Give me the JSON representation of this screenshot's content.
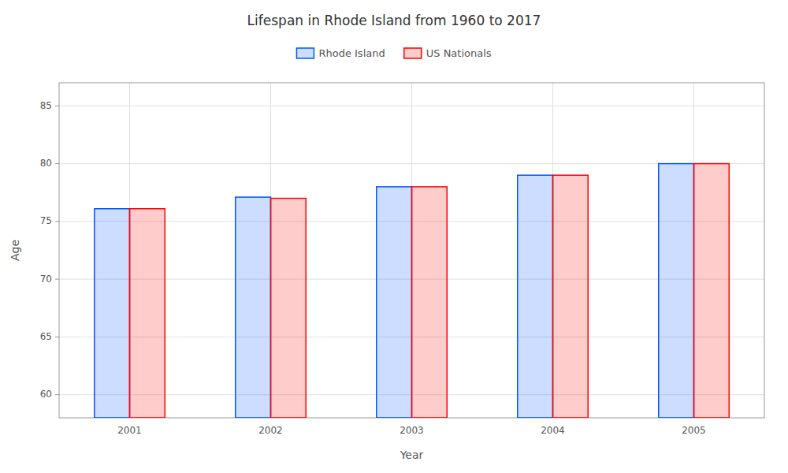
{
  "chart_data": {
    "type": "bar",
    "title": "Lifespan in Rhode Island from 1960 to 2017",
    "x_label": "Year",
    "y_label": "Age",
    "categories": [
      "2001",
      "2002",
      "2003",
      "2004",
      "2005"
    ],
    "series": [
      {
        "name": "Rhode Island",
        "color": "#0055ff",
        "values": [
          76.1,
          77.1,
          78.0,
          79.0,
          80.0
        ]
      },
      {
        "name": "US Nationals",
        "color": "#ff0000",
        "values": [
          76.1,
          77.0,
          78.0,
          79.0,
          80.0
        ]
      }
    ],
    "ylim": [
      58,
      87
    ],
    "yticks": [
      60,
      65,
      70,
      75,
      80,
      85
    ],
    "grid": true,
    "legend": "top"
  }
}
